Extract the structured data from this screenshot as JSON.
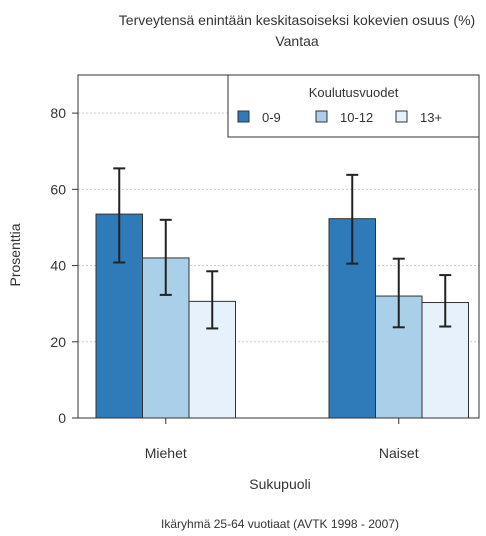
{
  "chart_data": {
    "type": "bar",
    "title": "Terveytensä enintään keskitasoiseksi kokevien osuus (%)",
    "subtitle": "Vantaa",
    "xlabel": "Sukupuoli",
    "ylabel": "Prosenttia",
    "caption": "Ikäryhmä 25-64 vuotiaat (AVTK 1998 - 2007)",
    "categories": [
      "Miehet",
      "Naiset"
    ],
    "ylim": [
      0,
      90
    ],
    "yticks": [
      0,
      20,
      40,
      60,
      80
    ],
    "grid": true,
    "legend": {
      "title": "Koulutusvuodet",
      "placement": "top-right"
    },
    "series": [
      {
        "name": "0-9",
        "color": "#2f7ab8",
        "values": [
          53.5,
          52.3
        ],
        "error_low": [
          40.8,
          40.5
        ],
        "error_high": [
          65.5,
          63.8
        ]
      },
      {
        "name": "10-12",
        "color": "#a9d0e8",
        "values": [
          42,
          32
        ],
        "error_low": [
          32.3,
          23.8
        ],
        "error_high": [
          52,
          41.8
        ]
      },
      {
        "name": "13+",
        "color": "#e6f1fb",
        "values": [
          30.6,
          30.3
        ],
        "error_low": [
          23.5,
          24
        ],
        "error_high": [
          38.5,
          37.5
        ]
      }
    ]
  }
}
